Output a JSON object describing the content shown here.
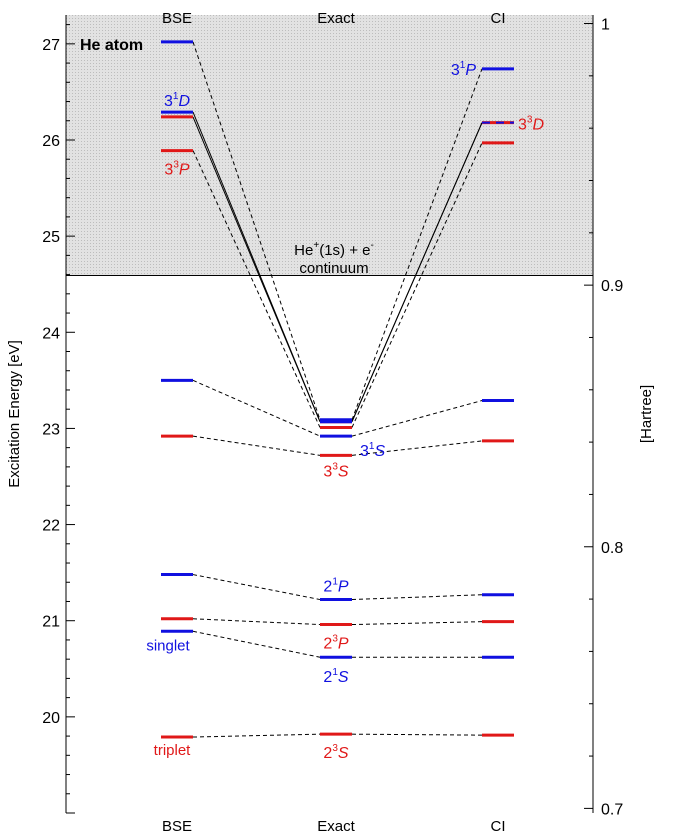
{
  "chart_data": {
    "type": "energy-level-diagram",
    "title": "He atom",
    "columns": [
      "BSE",
      "Exact",
      "CI"
    ],
    "ylabel_left": "Excitation Energy [eV]",
    "ylabel_right": "[Hartree]",
    "ylim_ev": [
      19.0,
      27.3
    ],
    "yticks_ev": [
      20,
      21,
      22,
      23,
      24,
      25,
      26,
      27
    ],
    "ylim_hartree": [
      0.7,
      1.0
    ],
    "yticks_hartree": [
      "0.7",
      "0.8",
      "0.9",
      "1"
    ],
    "continuum": {
      "threshold_ev": 24.59,
      "label_line1": "He",
      "label_sup": "+",
      "label_line1_rest": "(1s) + e",
      "label_sup2": "-",
      "label_line2": "continuum"
    },
    "colors": {
      "singlet": "#1010e0",
      "triplet": "#e01818",
      "continuum_fill": "#dcdcdc"
    },
    "legend": {
      "singlet": "singlet",
      "triplet": "triplet"
    },
    "states": [
      {
        "id": "2_3S",
        "prefix": "2",
        "sup": "3",
        "letter": "S",
        "mult": "triplet",
        "bse": 19.79,
        "exact": 19.82,
        "ci": 19.81
      },
      {
        "id": "2_1S",
        "prefix": "2",
        "sup": "1",
        "letter": "S",
        "mult": "singlet",
        "bse": 20.89,
        "exact": 20.62,
        "ci": 20.62
      },
      {
        "id": "2_3P",
        "prefix": "2",
        "sup": "3",
        "letter": "P",
        "mult": "triplet",
        "bse": 21.02,
        "exact": 20.96,
        "ci": 20.99
      },
      {
        "id": "2_1P",
        "prefix": "2",
        "sup": "1",
        "letter": "P",
        "mult": "singlet",
        "bse": 21.48,
        "exact": 21.22,
        "ci": 21.27
      },
      {
        "id": "3_3S",
        "prefix": "3",
        "sup": "3",
        "letter": "S",
        "mult": "triplet",
        "bse": 22.92,
        "exact": 22.72,
        "ci": 22.87
      },
      {
        "id": "3_1S",
        "prefix": "3",
        "sup": "1",
        "letter": "S",
        "mult": "singlet",
        "bse": 23.5,
        "exact": 22.92,
        "ci": 23.29
      },
      {
        "id": "3_3P",
        "prefix": "3",
        "sup": "3",
        "letter": "P",
        "mult": "triplet",
        "bse": 25.89,
        "exact": 23.01,
        "ci": 25.97
      },
      {
        "id": "3_3D",
        "prefix": "3",
        "sup": "3",
        "letter": "D",
        "mult": "triplet",
        "bse": 26.24,
        "exact": 23.07,
        "ci": 26.18
      },
      {
        "id": "3_1D",
        "prefix": "3",
        "sup": "1",
        "letter": "D",
        "mult": "singlet",
        "bse": 26.29,
        "exact": 23.07,
        "ci": 26.18
      },
      {
        "id": "3_1P",
        "prefix": "3",
        "sup": "1",
        "letter": "P",
        "mult": "singlet",
        "bse": 27.02,
        "exact": 23.09,
        "ci": 26.74
      }
    ],
    "labels": [
      {
        "state": "3_1D",
        "column": "BSE",
        "text_prefix": "3",
        "text_sup": "1",
        "text_letter": "D"
      },
      {
        "state": "3_3P",
        "column": "BSE",
        "text_prefix": "3",
        "text_sup": "3",
        "text_letter": "P"
      },
      {
        "state": "3_1P",
        "column": "CI",
        "text_prefix": "3",
        "text_sup": "1",
        "text_letter": "P"
      },
      {
        "state": "3_3D",
        "column": "CI",
        "text_prefix": "3",
        "text_sup": "3",
        "text_letter": "D"
      },
      {
        "state": "3_1S",
        "column": "Exact",
        "text_prefix": "3",
        "text_sup": "1",
        "text_letter": "S"
      },
      {
        "state": "3_3S",
        "column": "Exact",
        "text_prefix": "3",
        "text_sup": "3",
        "text_letter": "S"
      },
      {
        "state": "2_1P",
        "column": "Exact",
        "text_prefix": "2",
        "text_sup": "1",
        "text_letter": "P"
      },
      {
        "state": "2_3P",
        "column": "Exact",
        "text_prefix": "2",
        "text_sup": "3",
        "text_letter": "P"
      },
      {
        "state": "2_1S",
        "column": "Exact",
        "text_prefix": "2",
        "text_sup": "1",
        "text_letter": "S"
      },
      {
        "state": "2_3S",
        "column": "Exact",
        "text_prefix": "2",
        "text_sup": "3",
        "text_letter": "S"
      }
    ]
  }
}
